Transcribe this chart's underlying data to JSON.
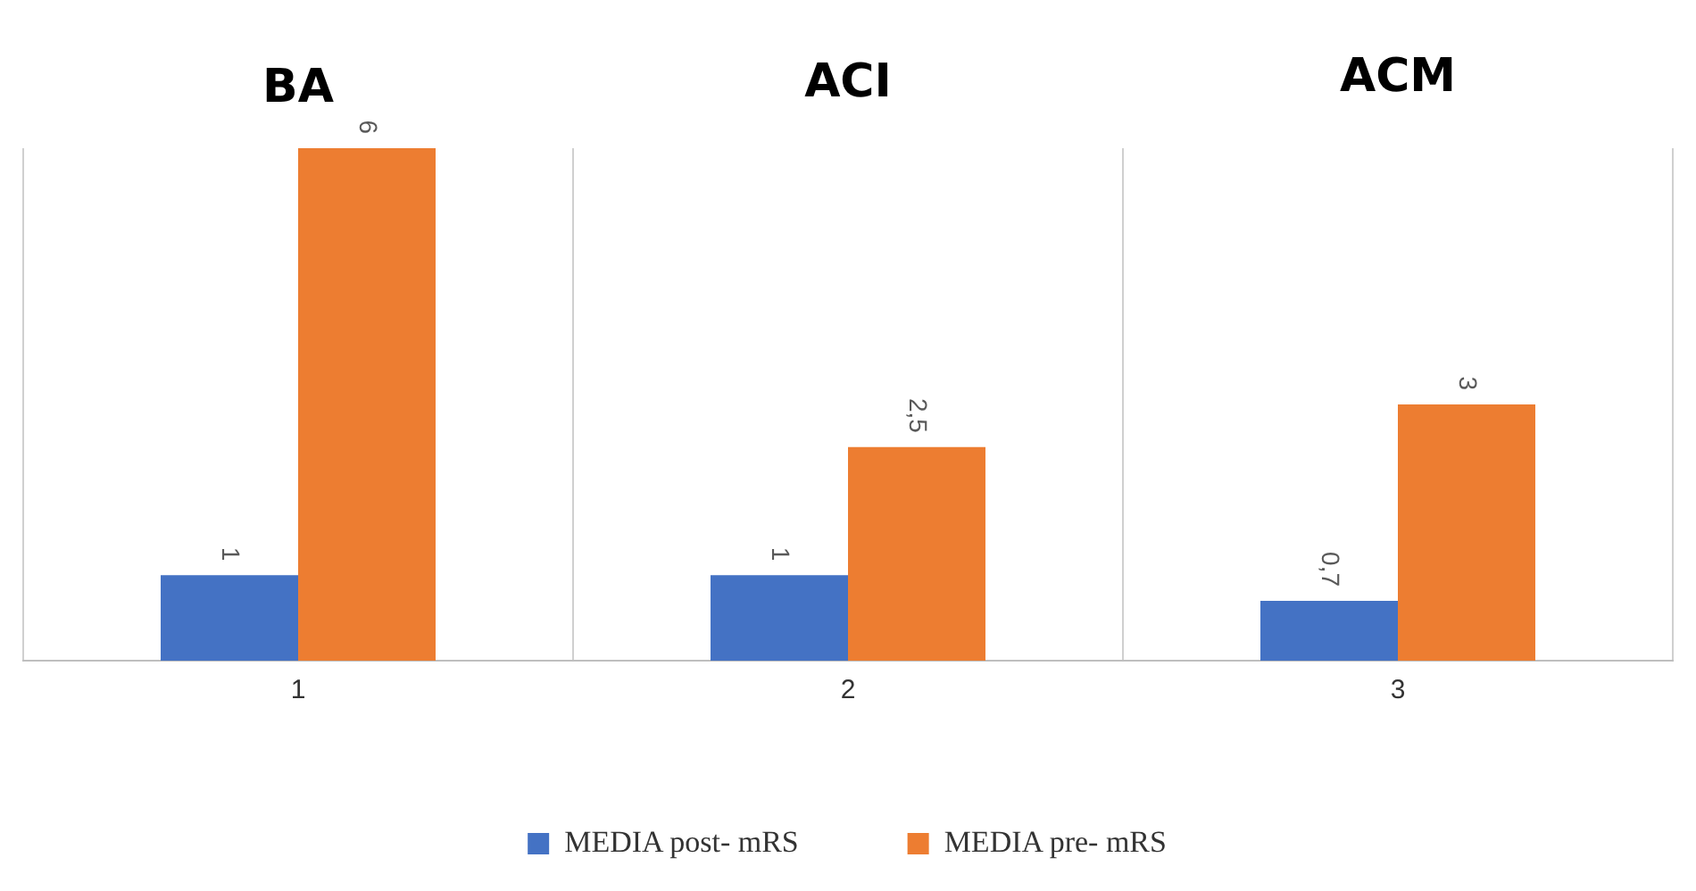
{
  "chart_data": {
    "type": "bar",
    "categories": [
      "1",
      "2",
      "3"
    ],
    "series": [
      {
        "name": "MEDIA post- mRS",
        "color": "#4472c4",
        "values": [
          1,
          1,
          0.7
        ],
        "value_labels": [
          "1",
          "1",
          "0,7"
        ]
      },
      {
        "name": "MEDIA pre- mRS",
        "color": "#ed7d31",
        "values": [
          6,
          2.5,
          3
        ],
        "value_labels": [
          "6",
          "2,5",
          "3"
        ]
      }
    ],
    "annotations": [
      "BA",
      "ACI",
      "ACM"
    ],
    "grid": "x",
    "legend": "bottom"
  }
}
